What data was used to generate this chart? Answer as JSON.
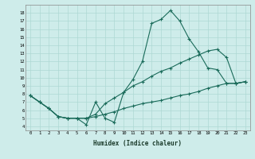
{
  "xlabel": "Humidex (Indice chaleur)",
  "bg_color": "#ceecea",
  "grid_color": "#aed8d4",
  "line_color": "#1a6b5a",
  "xlim": [
    -0.5,
    23.5
  ],
  "ylim": [
    3.5,
    19.0
  ],
  "xticks": [
    0,
    1,
    2,
    3,
    4,
    5,
    6,
    7,
    8,
    9,
    10,
    11,
    12,
    13,
    14,
    15,
    16,
    17,
    18,
    19,
    20,
    21,
    22,
    23
  ],
  "yticks": [
    4,
    5,
    6,
    7,
    8,
    9,
    10,
    11,
    12,
    13,
    14,
    15,
    16,
    17,
    18
  ],
  "line1_x": [
    0,
    1,
    2,
    3,
    4,
    5,
    6,
    7,
    8,
    9,
    10,
    11,
    12,
    13,
    14,
    15,
    16,
    17,
    18,
    19,
    20,
    21,
    22,
    23
  ],
  "line1_y": [
    7.8,
    7.0,
    6.2,
    5.2,
    5.0,
    5.0,
    4.2,
    7.0,
    5.0,
    4.5,
    8.2,
    9.8,
    12.0,
    16.7,
    17.2,
    18.3,
    17.0,
    14.8,
    13.2,
    11.2,
    11.0,
    9.3,
    9.3,
    9.5
  ],
  "line2_x": [
    0,
    1,
    2,
    3,
    4,
    5,
    6,
    7,
    8,
    9,
    10,
    11,
    12,
    13,
    14,
    15,
    16,
    17,
    18,
    19,
    20,
    21,
    22,
    23
  ],
  "line2_y": [
    7.8,
    7.0,
    6.2,
    5.2,
    5.0,
    5.0,
    5.0,
    5.5,
    6.8,
    7.5,
    8.2,
    9.0,
    9.5,
    10.2,
    10.8,
    11.2,
    11.8,
    12.3,
    12.8,
    13.3,
    13.5,
    12.5,
    9.3,
    9.5
  ],
  "line3_x": [
    0,
    1,
    2,
    3,
    4,
    5,
    6,
    7,
    8,
    9,
    10,
    11,
    12,
    13,
    14,
    15,
    16,
    17,
    18,
    19,
    20,
    21,
    22,
    23
  ],
  "line3_y": [
    7.8,
    7.0,
    6.2,
    5.2,
    5.0,
    5.0,
    5.0,
    5.2,
    5.5,
    5.8,
    6.2,
    6.5,
    6.8,
    7.0,
    7.2,
    7.5,
    7.8,
    8.0,
    8.3,
    8.7,
    9.0,
    9.3,
    9.3,
    9.5
  ]
}
